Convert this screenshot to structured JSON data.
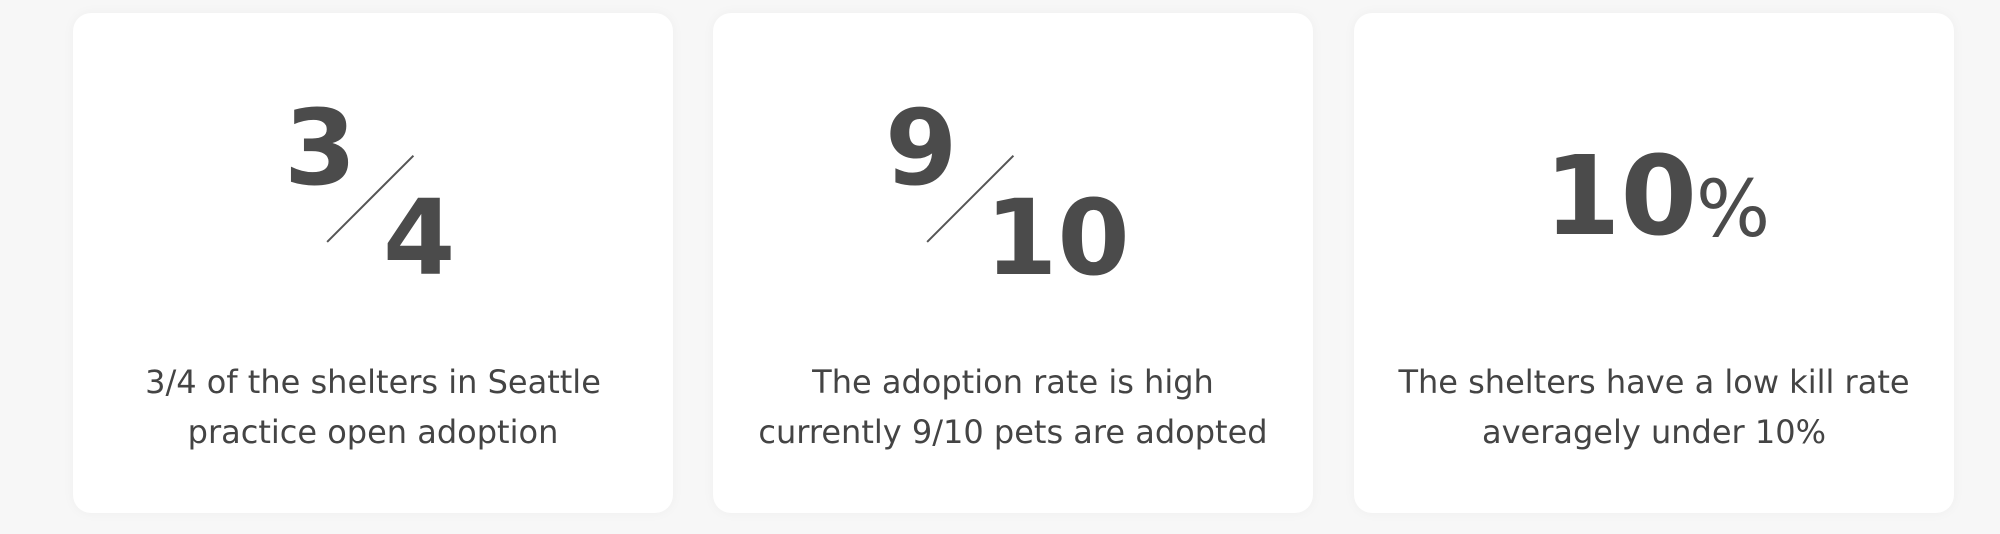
{
  "cards": [
    {
      "numerator": "3",
      "denominator": "4",
      "caption_lines": [
        "3/4 of the shelters in Seattle",
        "practice open adoption"
      ]
    },
    {
      "numerator": "9",
      "denominator": "10",
      "caption_lines": [
        "The adoption rate is high",
        "currently 9/10 pets are adopted"
      ]
    },
    {
      "value": "10",
      "unit": "%",
      "caption_lines": [
        "The shelters have a low kill rate",
        "averagely under 10%"
      ]
    }
  ],
  "colors": {
    "background": "#f7f7f7",
    "card": "#ffffff",
    "text": "#4b4b4b"
  }
}
